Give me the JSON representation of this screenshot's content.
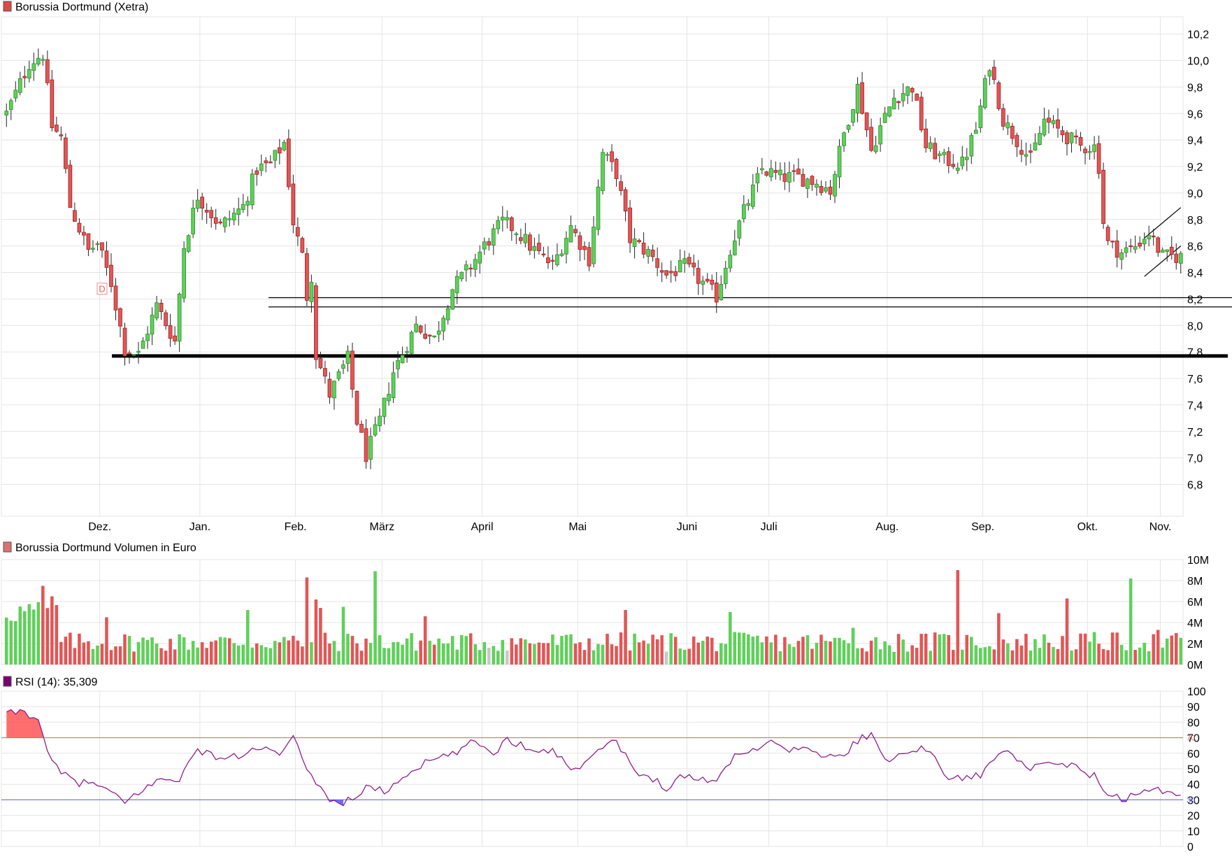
{
  "colors": {
    "up": "#5fd05a",
    "up_stroke": "#2e8c2a",
    "down": "#e25656",
    "down_stroke": "#9c1f1f",
    "neutral_volume": "#c8c8c8",
    "grid": "#e4e4e4",
    "rsi_line": "#8a1f8a",
    "rsi_overbought_fill": "#ff5555",
    "rsi_oversold_fill": "#5555ff",
    "rsi_70_line": "#e06060",
    "rsi_30_line": "#6060e0",
    "legend_price": "#e04848",
    "legend_volume": "#e07070",
    "legend_rsi": "#7a007a"
  },
  "chart_data": [
    {
      "type": "candlestick",
      "title": "Borussia Dortmund (Xetra)",
      "x_months": [
        "Dez.",
        "Jan.",
        "Feb.",
        "März",
        "April",
        "Mai",
        "Juni",
        "Juli",
        "Aug.",
        "Sep.",
        "Okt.",
        "Nov."
      ],
      "y_ticks": [
        "10,2",
        "10,0",
        "9,8",
        "9,6",
        "9,4",
        "9,2",
        "9,0",
        "8,8",
        "8,6",
        "8,4",
        "8,2",
        "8,0",
        "7,8",
        "7,6",
        "7,4",
        "7,2",
        "7,0",
        "6,8"
      ],
      "ylim": [
        6.56,
        10.33
      ],
      "grid": true,
      "dividend_marker": "D",
      "anchors": [
        [
          0,
          9.6
        ],
        [
          5,
          9.98
        ],
        [
          8,
          10.05
        ],
        [
          10,
          9.5
        ],
        [
          12,
          9.42
        ],
        [
          14,
          8.9
        ],
        [
          18,
          8.56
        ],
        [
          20,
          8.62
        ],
        [
          23,
          8.32
        ],
        [
          26,
          7.82
        ],
        [
          29,
          7.78
        ],
        [
          33,
          8.15
        ],
        [
          37,
          7.88
        ],
        [
          39,
          8.6
        ],
        [
          42,
          8.98
        ],
        [
          47,
          8.75
        ],
        [
          52,
          8.9
        ],
        [
          55,
          9.18
        ],
        [
          58,
          9.22
        ],
        [
          61,
          9.38
        ],
        [
          63,
          8.78
        ],
        [
          65,
          8.52
        ],
        [
          66,
          8.22
        ],
        [
          67,
          8.38
        ],
        [
          68,
          7.78
        ],
        [
          71,
          7.48
        ],
        [
          75,
          7.75
        ],
        [
          77,
          7.28
        ],
        [
          79,
          7.02
        ],
        [
          82,
          7.28
        ],
        [
          85,
          7.65
        ],
        [
          90,
          8.0
        ],
        [
          94,
          7.9
        ],
        [
          98,
          8.28
        ],
        [
          102,
          8.45
        ],
        [
          106,
          8.65
        ],
        [
          109,
          8.78
        ],
        [
          112,
          8.72
        ],
        [
          115,
          8.6
        ],
        [
          120,
          8.45
        ],
        [
          124,
          8.75
        ],
        [
          128,
          8.5
        ],
        [
          131,
          9.3
        ],
        [
          134,
          9.15
        ],
        [
          137,
          8.65
        ],
        [
          141,
          8.55
        ],
        [
          145,
          8.38
        ],
        [
          149,
          8.45
        ],
        [
          153,
          8.32
        ],
        [
          156,
          8.22
        ],
        [
          159,
          8.58
        ],
        [
          162,
          8.86
        ],
        [
          166,
          9.18
        ],
        [
          170,
          9.12
        ],
        [
          174,
          9.12
        ],
        [
          178,
          9.08
        ],
        [
          181,
          9.02
        ],
        [
          184,
          9.45
        ],
        [
          187,
          9.8
        ],
        [
          190,
          9.32
        ],
        [
          192,
          9.5
        ],
        [
          195,
          9.72
        ],
        [
          199,
          9.8
        ],
        [
          202,
          9.35
        ],
        [
          206,
          9.25
        ],
        [
          210,
          9.22
        ],
        [
          213,
          9.48
        ],
        [
          216,
          9.98
        ],
        [
          219,
          9.55
        ],
        [
          222,
          9.4
        ],
        [
          225,
          9.25
        ],
        [
          228,
          9.55
        ],
        [
          232,
          9.45
        ],
        [
          236,
          9.35
        ],
        [
          239,
          9.35
        ],
        [
          240,
          9.2
        ],
        [
          241,
          8.78
        ],
        [
          242,
          8.62
        ],
        [
          245,
          8.55
        ],
        [
          248,
          8.6
        ],
        [
          251,
          8.7
        ],
        [
          254,
          8.52
        ]
      ],
      "support_lines": [
        {
          "name": "",
          "value": 8.21
        },
        {
          "name": "",
          "value": 8.14
        },
        {
          "name": "",
          "value": 7.77
        }
      ],
      "trend_channel": {
        "lower": [
          [
            250,
            8.37
          ],
          [
            258,
            8.6
          ]
        ],
        "upper": [
          [
            250,
            8.66
          ],
          [
            258,
            8.89
          ]
        ]
      },
      "sessions": 259
    },
    {
      "type": "bar",
      "title": "Borussia Dortmund Volumen in Euro",
      "y_ticks": [
        "10M",
        "8M",
        "6M",
        "4M",
        "2M",
        "0M"
      ],
      "ylim": [
        0,
        10
      ],
      "unit": "M EUR",
      "grid": true,
      "spikes": [
        [
          66,
          8.3
        ],
        [
          68,
          6.2
        ],
        [
          69,
          5.4
        ],
        [
          74,
          5.5
        ],
        [
          81,
          8.9
        ],
        [
          92,
          4.6
        ],
        [
          209,
          9.0
        ],
        [
          247,
          8.2
        ],
        [
          233,
          6.3
        ],
        [
          8,
          7.5
        ],
        [
          10,
          6.5
        ],
        [
          22,
          4.5
        ],
        [
          53,
          5.2
        ],
        [
          136,
          5.2
        ],
        [
          159,
          5.0
        ],
        [
          186,
          3.5
        ],
        [
          218,
          4.9
        ],
        [
          253,
          3.3
        ]
      ]
    },
    {
      "type": "line",
      "title": "RSI (14): 35,309",
      "y_ticks": [
        "100",
        "90",
        "80",
        "70",
        "60",
        "50",
        "40",
        "30",
        "20",
        "10",
        "0"
      ],
      "ylim": [
        0,
        100
      ],
      "overbought": 70,
      "oversold": 30,
      "grid": true,
      "anchors": [
        [
          0,
          85
        ],
        [
          3,
          87
        ],
        [
          7,
          83
        ],
        [
          9,
          59
        ],
        [
          12,
          47
        ],
        [
          16,
          41
        ],
        [
          20,
          40
        ],
        [
          26,
          28
        ],
        [
          30,
          37
        ],
        [
          34,
          43
        ],
        [
          38,
          44
        ],
        [
          42,
          62
        ],
        [
          47,
          57
        ],
        [
          52,
          58
        ],
        [
          55,
          64
        ],
        [
          60,
          59
        ],
        [
          63,
          69
        ],
        [
          66,
          51
        ],
        [
          70,
          33
        ],
        [
          73,
          27
        ],
        [
          76,
          31
        ],
        [
          80,
          39
        ],
        [
          83,
          35
        ],
        [
          90,
          51
        ],
        [
          94,
          56
        ],
        [
          98,
          59
        ],
        [
          103,
          68
        ],
        [
          107,
          60
        ],
        [
          110,
          69
        ],
        [
          115,
          63
        ],
        [
          120,
          62
        ],
        [
          125,
          48
        ],
        [
          128,
          59
        ],
        [
          131,
          64
        ],
        [
          134,
          69
        ],
        [
          138,
          47
        ],
        [
          142,
          44
        ],
        [
          145,
          38
        ],
        [
          148,
          45
        ],
        [
          152,
          44
        ],
        [
          156,
          42
        ],
        [
          160,
          60
        ],
        [
          163,
          60
        ],
        [
          167,
          68
        ],
        [
          171,
          63
        ],
        [
          175,
          63
        ],
        [
          180,
          58
        ],
        [
          183,
          57
        ],
        [
          188,
          71
        ],
        [
          190,
          72
        ],
        [
          193,
          54
        ],
        [
          197,
          62
        ],
        [
          201,
          63
        ],
        [
          204,
          58
        ],
        [
          207,
          43
        ],
        [
          211,
          45
        ],
        [
          214,
          45
        ],
        [
          218,
          62
        ],
        [
          220,
          64
        ],
        [
          224,
          49
        ],
        [
          228,
          52
        ],
        [
          232,
          53
        ],
        [
          236,
          50
        ],
        [
          239,
          45
        ],
        [
          241,
          35
        ],
        [
          243,
          32
        ],
        [
          246,
          31
        ],
        [
          249,
          34
        ],
        [
          252,
          37
        ],
        [
          254,
          35
        ]
      ],
      "last_value": "35,309"
    }
  ]
}
